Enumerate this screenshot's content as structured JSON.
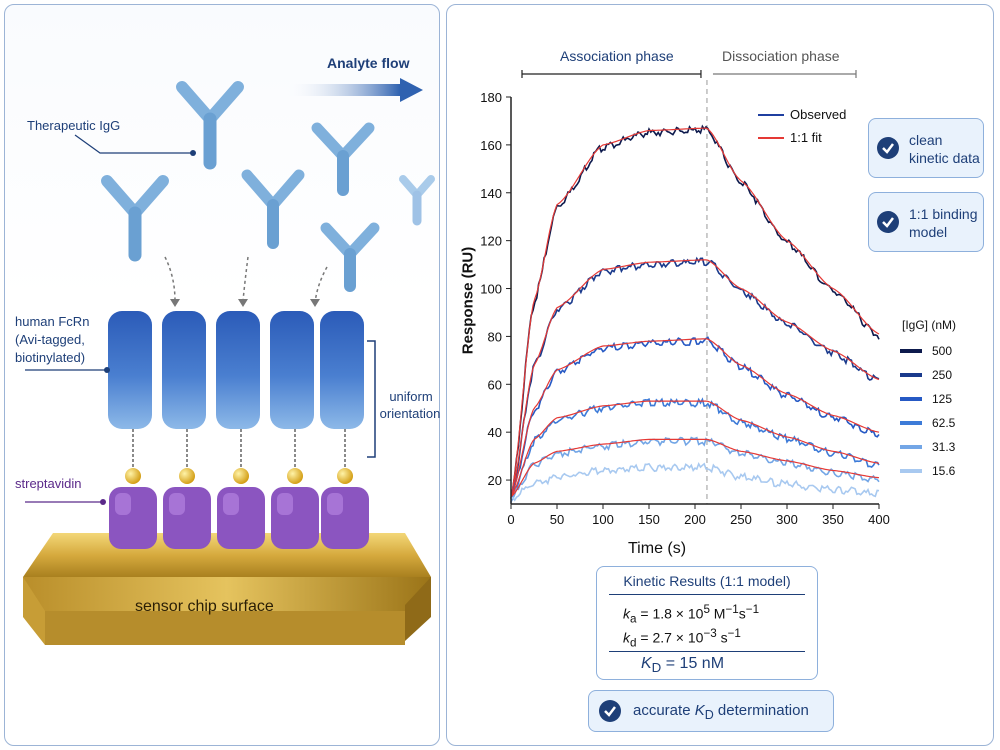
{
  "left": {
    "analyte_flow": "Analyte flow",
    "therapeutic_igg": "Therapeutic IgG",
    "human_fcrn": [
      "human FcRn",
      "(Avi-tagged,",
      "biotinylated)"
    ],
    "uniform_orientation": [
      "uniform",
      "orientation"
    ],
    "streptavidin": "streptavidin",
    "chip_surface": "sensor chip surface"
  },
  "colors": {
    "navy": "#1e3f78",
    "fcrn_blue": "#3f6fc4",
    "igg_blue": "#7fb0dc",
    "streptavidin_purple": "#8b55c0",
    "biotin_gold": "#e8b923",
    "chip_gold": "#caa23c",
    "fit_red": "#e53935",
    "observed_blue": "#1f3fa0"
  },
  "phases": {
    "association": "Association phase",
    "dissociation": "Dissociation phase"
  },
  "badges": {
    "clean": [
      "clean",
      "kinetic data"
    ],
    "model": [
      "1:1 binding",
      "model"
    ],
    "accurate": {
      "pre": "accurate ",
      "k": "K",
      "sub": "D",
      "post": " determination"
    }
  },
  "kinetics": {
    "title": "Kinetic Results (1:1 model)",
    "ka": {
      "k": "k",
      "sub": "a",
      "eq": " = 1.8 × 10",
      "exp": "5",
      "unit": " M",
      "unit_exp": "−1",
      "unit2": "s",
      "unit2_exp": "−1"
    },
    "kd": {
      "k": "k",
      "sub": "d",
      "eq": " = 2.7 × 10",
      "exp": "−3",
      "unit": " s",
      "unit_exp": "−1"
    },
    "KD": {
      "k": "K",
      "sub": "D",
      "eq": "  =  15 nM"
    }
  },
  "chart_data": {
    "type": "line",
    "xlabel": "Time (s)",
    "ylabel": "Response (RU)",
    "xlim": [
      0,
      400
    ],
    "ylim": [
      10,
      180
    ],
    "xticks": [
      0,
      50,
      100,
      150,
      200,
      250,
      300,
      350,
      400
    ],
    "yticks": [
      20,
      40,
      60,
      80,
      100,
      120,
      140,
      160,
      180
    ],
    "injection_end": 213,
    "legend": [
      "Observed",
      "1:1 fit"
    ],
    "conc_title": "[IgG] (nM)",
    "concentrations": [
      "500",
      "250",
      "125",
      "62.5",
      "31.3",
      "15.6"
    ],
    "series": [
      {
        "conc": "500",
        "color": "#0d1a4d",
        "values": [
          [
            0,
            13
          ],
          [
            25,
            95
          ],
          [
            50,
            135
          ],
          [
            100,
            160
          ],
          [
            150,
            166
          ],
          [
            213,
            167
          ],
          [
            250,
            145
          ],
          [
            300,
            120
          ],
          [
            350,
            100
          ],
          [
            400,
            81
          ]
        ]
      },
      {
        "conc": "250",
        "color": "#1a3a8c",
        "values": [
          [
            0,
            13
          ],
          [
            25,
            68
          ],
          [
            50,
            92
          ],
          [
            100,
            108
          ],
          [
            150,
            111
          ],
          [
            213,
            112
          ],
          [
            250,
            100
          ],
          [
            300,
            86
          ],
          [
            350,
            74
          ],
          [
            400,
            62
          ]
        ]
      },
      {
        "conc": "125",
        "color": "#2659c4",
        "values": [
          [
            0,
            13
          ],
          [
            25,
            50
          ],
          [
            50,
            66
          ],
          [
            100,
            76
          ],
          [
            150,
            78
          ],
          [
            213,
            79
          ],
          [
            250,
            68
          ],
          [
            300,
            56
          ],
          [
            350,
            47
          ],
          [
            400,
            40
          ]
        ]
      },
      {
        "conc": "62.5",
        "color": "#3d7bd8",
        "values": [
          [
            0,
            13
          ],
          [
            25,
            37
          ],
          [
            50,
            46
          ],
          [
            100,
            51
          ],
          [
            150,
            53
          ],
          [
            213,
            53
          ],
          [
            250,
            45
          ],
          [
            300,
            38
          ],
          [
            350,
            32
          ],
          [
            400,
            27
          ]
        ]
      },
      {
        "conc": "31.3",
        "color": "#73a6e6",
        "values": [
          [
            0,
            13
          ],
          [
            25,
            27
          ],
          [
            50,
            32
          ],
          [
            100,
            35
          ],
          [
            150,
            37
          ],
          [
            213,
            37
          ],
          [
            250,
            32
          ],
          [
            300,
            28
          ],
          [
            350,
            24
          ],
          [
            400,
            21
          ]
        ]
      },
      {
        "conc": "15.6",
        "color": "#a8c9f0",
        "values": [
          [
            0,
            13
          ],
          [
            25,
            19
          ],
          [
            50,
            22
          ],
          [
            100,
            25
          ],
          [
            150,
            26
          ],
          [
            213,
            26
          ],
          [
            250,
            22
          ],
          [
            300,
            19
          ],
          [
            350,
            17
          ],
          [
            400,
            15
          ]
        ]
      }
    ]
  }
}
